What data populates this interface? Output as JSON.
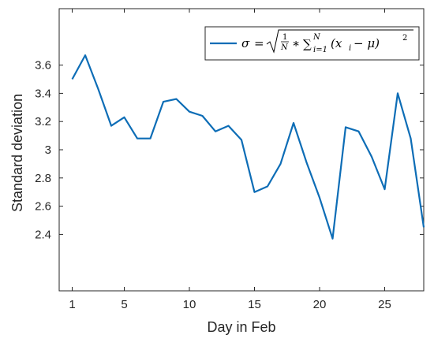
{
  "chart_data": {
    "type": "line",
    "xlabel": "Day in Feb",
    "ylabel": "Standard deviation",
    "xlim": [
      0,
      28
    ],
    "ylim": [
      2.0,
      4.0
    ],
    "xticks": [
      1,
      5,
      10,
      15,
      20,
      25
    ],
    "yticks": [
      2.4,
      2.6,
      2.8,
      3.0,
      3.2,
      3.4,
      3.6
    ],
    "ytick_labels": [
      "2.4",
      "2.6",
      "2.8",
      "3",
      "3.2",
      "3.4",
      "3.6"
    ],
    "grid": false,
    "legend_position": "top-right",
    "series": [
      {
        "legend_formula": {
          "lhs": "σ",
          "eq": "=",
          "frac_num": "1",
          "frac_den": "N",
          "times": "∗",
          "sum": "∑",
          "sum_sub": "i=1",
          "sum_sup": "N",
          "body": "(x",
          "body_sub": "i",
          "body_rest": " − μ)",
          "power": "2"
        },
        "color": "#0d6db6",
        "x": [
          1,
          2,
          3,
          4,
          5,
          6,
          7,
          8,
          9,
          10,
          11,
          12,
          13,
          14,
          15,
          16,
          17,
          18,
          19,
          20,
          21,
          22,
          23,
          24,
          25,
          26,
          27,
          28
        ],
        "y": [
          3.5,
          3.67,
          3.43,
          3.17,
          3.23,
          3.08,
          3.08,
          3.34,
          3.36,
          3.27,
          3.24,
          3.13,
          3.17,
          3.07,
          2.7,
          2.74,
          2.9,
          3.19,
          2.91,
          2.66,
          2.37,
          3.16,
          3.13,
          2.95,
          2.72,
          3.4,
          3.08,
          2.45
        ]
      }
    ]
  }
}
